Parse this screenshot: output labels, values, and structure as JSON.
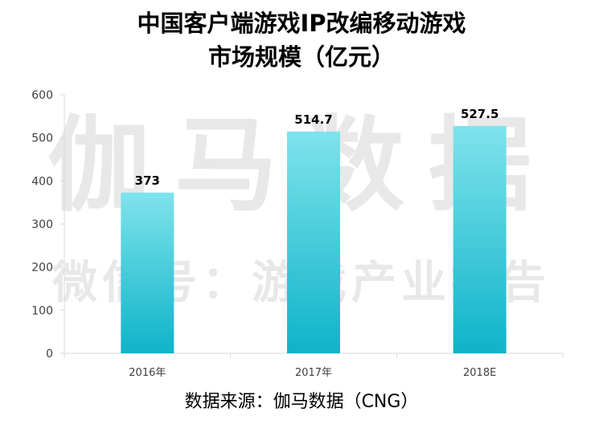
{
  "title_line1": "中国客户端游戏IP改编移动游戏",
  "title_line2": "市场规模（亿元）",
  "watermark_main": "伽马数据",
  "watermark_sub": "微信号：游戏产业报告",
  "source": "数据来源：伽马数据（CNG）",
  "colors": {
    "bar_top": "#7fe3ec",
    "bar_bottom": "#0fb3c9",
    "axis": "#d9d9d9",
    "tick_text": "#404040",
    "label_text": "#000000"
  },
  "chart_data": {
    "type": "bar",
    "categories": [
      "2016年",
      "2017年",
      "2018E"
    ],
    "values": [
      373,
      514.7,
      527.5
    ],
    "data_labels": [
      "373",
      "514.7",
      "527.5"
    ],
    "ylim": [
      0,
      600
    ],
    "yticks": [
      0,
      100,
      200,
      300,
      400,
      500,
      600
    ],
    "grid": false,
    "xlabel": "",
    "ylabel": ""
  }
}
